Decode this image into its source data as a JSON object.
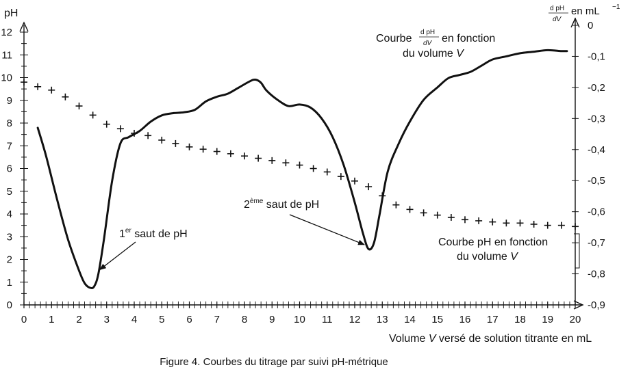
{
  "chart_data": {
    "type": "line",
    "caption": "Figure 4. Courbes du titrage par suivi pH-métrique",
    "xlabel_parts": [
      "Volume ",
      "V",
      " versé de solution titrante en mL"
    ],
    "ylabel_left": "pH",
    "ylabel_right_frac_num": "d pH",
    "ylabel_right_frac_den": "dV",
    "ylabel_right_unit": "en mL",
    "ylabel_right_unit_exp": "−1",
    "xlim": [
      0,
      20
    ],
    "ylim_left": [
      0,
      12
    ],
    "ylim_right": [
      -0.9,
      0
    ],
    "x_ticks": [
      "0",
      "1",
      "2",
      "3",
      "4",
      "5",
      "6",
      "7",
      "8",
      "9",
      "10",
      "11",
      "12",
      "13",
      "14",
      "15",
      "16",
      "17",
      "18",
      "19",
      "20"
    ],
    "left_ticks": [
      "0",
      "1",
      "2",
      "3",
      "4",
      "5",
      "6",
      "7",
      "8",
      "9",
      "10",
      "11",
      "12"
    ],
    "right_ticks": [
      "0",
      "-0,1",
      "-0,2",
      "-0,3",
      "-0,4",
      "-0,5",
      "-0,6",
      "-0,7",
      "-0,8",
      "-0,9"
    ],
    "series": [
      {
        "axis": "left",
        "marker": "cross",
        "x": [
          0,
          0.5,
          1,
          1.5,
          2,
          2.5,
          3,
          3.5,
          4,
          4.5,
          5,
          5.5,
          6,
          6.5,
          7,
          7.5,
          8,
          8.5,
          9,
          9.5,
          10,
          10.5,
          11,
          11.5,
          12,
          12.5,
          13,
          13.5,
          14,
          14.5,
          15,
          15.5,
          16,
          16.5,
          17,
          17.5,
          18,
          18.5,
          19,
          19.5,
          20
        ],
        "y": [
          9.8,
          9.6,
          9.45,
          9.15,
          8.75,
          8.35,
          7.95,
          7.75,
          7.55,
          7.45,
          7.25,
          7.1,
          6.95,
          6.85,
          6.75,
          6.65,
          6.55,
          6.45,
          6.35,
          6.25,
          6.15,
          6.0,
          5.85,
          5.65,
          5.45,
          5.2,
          4.8,
          4.4,
          4.2,
          4.05,
          3.95,
          3.85,
          3.75,
          3.7,
          3.65,
          3.6,
          3.6,
          3.55,
          3.5,
          3.5,
          3.45
        ]
      },
      {
        "axis": "right",
        "marker": "none",
        "x": [
          0.5,
          0.8,
          1.2,
          1.6,
          2.0,
          2.2,
          2.4,
          2.55,
          2.7,
          2.9,
          3.2,
          3.5,
          3.8,
          4.2,
          4.6,
          5.0,
          5.4,
          5.8,
          6.2,
          6.6,
          7.0,
          7.4,
          7.8,
          8.2,
          8.4,
          8.6,
          8.8,
          9.2,
          9.6,
          10.0,
          10.4,
          10.8,
          11.2,
          11.6,
          12.0,
          12.3,
          12.5,
          12.7,
          12.9,
          13.2,
          13.6,
          14.0,
          14.5,
          15.0,
          15.4,
          15.8,
          16.2,
          16.6,
          17.0,
          17.5,
          18.0,
          18.5,
          19.0,
          19.5,
          19.7
        ],
        "y": [
          -0.33,
          -0.42,
          -0.56,
          -0.69,
          -0.79,
          -0.83,
          -0.845,
          -0.84,
          -0.8,
          -0.69,
          -0.5,
          -0.38,
          -0.36,
          -0.34,
          -0.31,
          -0.29,
          -0.283,
          -0.28,
          -0.272,
          -0.245,
          -0.23,
          -0.22,
          -0.2,
          -0.18,
          -0.175,
          -0.185,
          -0.21,
          -0.24,
          -0.26,
          -0.255,
          -0.265,
          -0.3,
          -0.36,
          -0.45,
          -0.57,
          -0.67,
          -0.72,
          -0.7,
          -0.61,
          -0.47,
          -0.38,
          -0.31,
          -0.24,
          -0.2,
          -0.17,
          -0.16,
          -0.15,
          -0.13,
          -0.11,
          -0.1,
          -0.09,
          -0.085,
          -0.08,
          -0.083,
          -0.083
        ]
      }
    ],
    "annotations": [
      {
        "id": "first",
        "text_sup": "er",
        "text_pre": "1",
        "text_post": " saut de pH",
        "arrow_to": [
          2.75,
          1.55
        ]
      },
      {
        "id": "second",
        "text_sup": "ème",
        "text_pre": "2",
        "text_post": " saut de pH",
        "arrow_to": [
          12.35,
          2.65
        ]
      }
    ],
    "labels": {
      "deriv_curve_pre": "Courbe",
      "deriv_curve_post": "en fonction",
      "deriv_curve_line2_pre": "du volume ",
      "deriv_curve_line2_var": "V",
      "ph_curve_line1": "Courbe pH en fonction",
      "ph_curve_line2_pre": "du volume ",
      "ph_curve_line2_var": "V"
    }
  }
}
